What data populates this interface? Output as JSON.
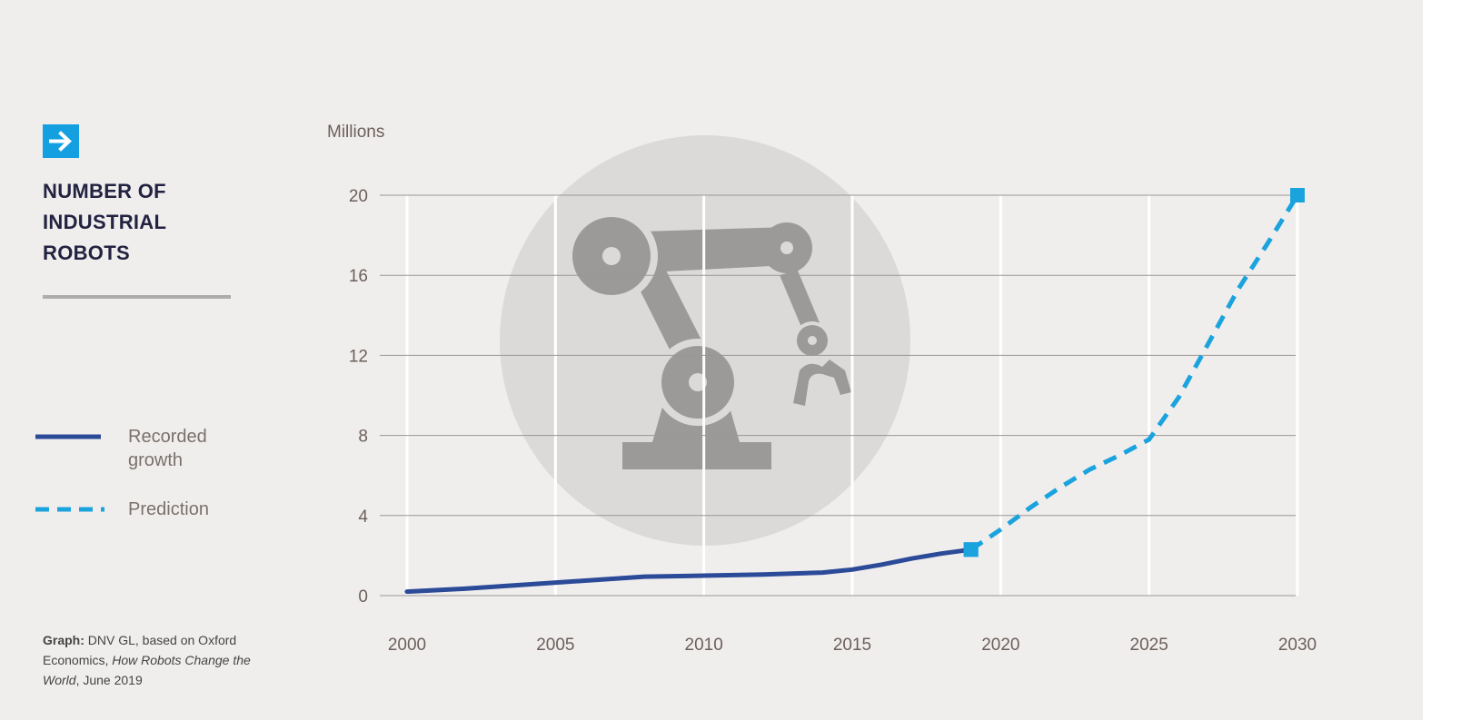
{
  "sidebar": {
    "title_lines": [
      "NUMBER OF",
      "INDUSTRIAL",
      "ROBOTS"
    ],
    "legend": [
      {
        "label_lines": [
          "Recorded",
          "growth"
        ],
        "style": "solid",
        "color": "#2b4a98"
      },
      {
        "label_lines": [
          "Prediction"
        ],
        "style": "dashed",
        "color": "#1ba3de"
      }
    ],
    "source": {
      "prefix": "Graph:",
      "text_1": "DNV GL, based on Oxford Economics,",
      "italic": "How Robots Change the World",
      "text_2": ", June 2019"
    }
  },
  "colors": {
    "background": "#f0eeed",
    "accent": "#14a0e0",
    "recorded": "#2b4a98",
    "prediction": "#1ba3de",
    "title": "#222241",
    "watermark_circle": "#dcdad9",
    "watermark_robot": "#9c9a99"
  },
  "icons": {
    "badge": "arrow-right-icon",
    "watermark": "industrial-robot-arm-icon"
  },
  "chart_data": {
    "type": "line",
    "title": "NUMBER OF INDUSTRIAL ROBOTS",
    "ylabel": "Millions",
    "xlabel": "",
    "xlim": [
      2000,
      2030
    ],
    "ylim": [
      0,
      20
    ],
    "x_ticks": [
      2000,
      2005,
      2010,
      2015,
      2020,
      2025,
      2030
    ],
    "y_ticks": [
      0,
      4,
      8,
      12,
      16,
      20
    ],
    "grid": true,
    "legend_position": "left",
    "series": [
      {
        "name": "Recorded growth",
        "style": "solid",
        "x": [
          2000,
          2002,
          2004,
          2006,
          2008,
          2010,
          2012,
          2014,
          2015,
          2016,
          2017,
          2018,
          2019
        ],
        "y": [
          0.2,
          0.35,
          0.55,
          0.75,
          0.95,
          1.0,
          1.05,
          1.15,
          1.3,
          1.55,
          1.85,
          2.1,
          2.3
        ],
        "end_marker": "square"
      },
      {
        "name": "Prediction",
        "style": "dashed",
        "x": [
          2019,
          2020,
          2021,
          2022,
          2023,
          2024,
          2025,
          2026,
          2027,
          2028,
          2029,
          2030
        ],
        "y": [
          2.3,
          3.3,
          4.4,
          5.4,
          6.3,
          7.0,
          7.8,
          9.9,
          12.6,
          15.3,
          17.6,
          20.0
        ],
        "start_marker": "square",
        "end_marker": "square"
      }
    ]
  }
}
